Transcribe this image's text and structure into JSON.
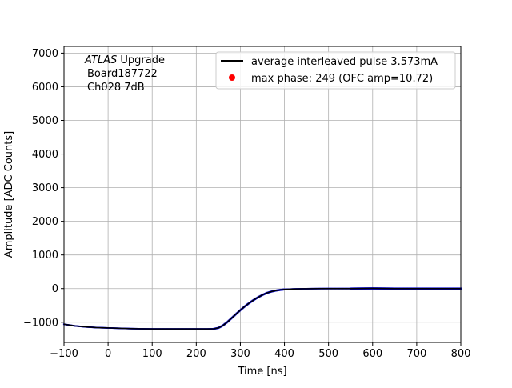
{
  "chart_data": {
    "type": "scatter",
    "title": "",
    "xlabel": "Time [ns]",
    "ylabel": "Amplitude [ADC Counts]",
    "xlim": [
      -100,
      800
    ],
    "ylim": [
      -1600,
      7200
    ],
    "x_ticks": [
      -100,
      0,
      100,
      200,
      300,
      400,
      500,
      600,
      700,
      800
    ],
    "x_tick_labels": [
      "−100",
      "0",
      "100",
      "200",
      "300",
      "400",
      "500",
      "600",
      "700",
      "800"
    ],
    "y_ticks": [
      -1000,
      0,
      1000,
      2000,
      3000,
      4000,
      5000,
      6000,
      7000
    ],
    "y_tick_labels": [
      "−1000",
      "0",
      "1000",
      "2000",
      "3000",
      "4000",
      "5000",
      "6000",
      "7000"
    ],
    "grid": true,
    "legend_position": "top-right",
    "annotation": {
      "line1_italic": "ATLAS",
      "line1_rest": " Upgrade",
      "line2": "Board187722",
      "line3": "Ch028 7dB"
    },
    "series": [
      {
        "name": "average interleaved pulse 3.573mA",
        "kind": "line",
        "color": "#000000",
        "x": [
          -100,
          -75,
          -50,
          -25,
          0,
          25,
          50,
          75,
          100,
          125,
          150,
          175,
          200,
          225,
          240,
          250,
          260,
          270,
          280,
          290,
          300,
          310,
          320,
          330,
          340,
          350,
          360,
          370,
          380,
          390,
          400,
          420,
          440,
          460,
          480,
          500,
          550,
          600,
          650,
          700,
          750,
          800
        ],
        "y": [
          -1060,
          -1110,
          -1140,
          -1160,
          -1170,
          -1180,
          -1190,
          -1195,
          -1200,
          -1200,
          -1200,
          -1200,
          -1200,
          -1200,
          -1195,
          -1170,
          -1100,
          -1000,
          -880,
          -760,
          -640,
          -530,
          -430,
          -340,
          -260,
          -190,
          -130,
          -90,
          -60,
          -40,
          -25,
          -12,
          -6,
          -3,
          -1,
          0,
          0,
          5,
          0,
          0,
          0,
          0
        ]
      },
      {
        "name": "max phase: 249 (OFC amp=10.72)",
        "kind": "marker",
        "color": "#ff0000",
        "points": []
      }
    ],
    "samples_color": "#0000cc"
  }
}
